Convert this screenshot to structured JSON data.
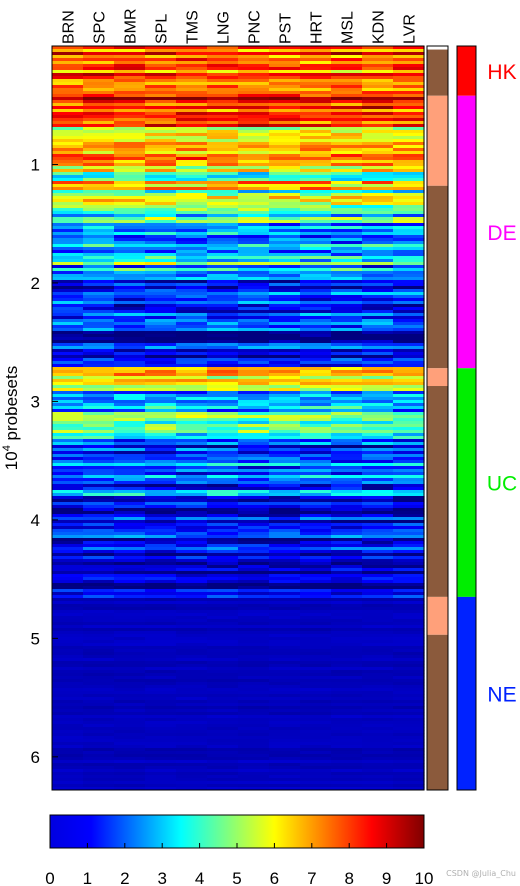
{
  "chart_data": {
    "type": "heatmap",
    "columns": [
      "BRN",
      "SPC",
      "BMR",
      "SPL",
      "TMS",
      "LNG",
      "PNC",
      "PST",
      "HRT",
      "MSL",
      "KDN",
      "LVR"
    ],
    "ylabel": "10^4 probesets",
    "ylabel_base": "10",
    "ylabel_exponent": "4",
    "ylabel_rest": " probesets",
    "ylim": [
      0,
      6.28
    ],
    "yticks": [
      1,
      2,
      3,
      4,
      5,
      6
    ],
    "colorbar": {
      "colormap": "jet",
      "range": [
        0,
        10
      ],
      "ticks": [
        "0",
        "1",
        "2",
        "3",
        "4",
        "5",
        "6",
        "7",
        "8",
        "9",
        "10"
      ]
    },
    "groups": [
      {
        "label": "HK",
        "color": "#ff0000",
        "start": 0.0,
        "end": 0.42
      },
      {
        "label": "DE",
        "color": "#ff00ff",
        "start": 0.42,
        "end": 2.72
      },
      {
        "label": "UC",
        "color": "#00ee00",
        "start": 2.72,
        "end": 4.65
      },
      {
        "label": "NE",
        "color": "#0022ff",
        "start": 4.65,
        "end": 6.28
      }
    ],
    "block_bar": [
      {
        "color": "#ffffff",
        "start": 0.0,
        "end": 0.03
      },
      {
        "color": "#8b5a3c",
        "start": 0.03,
        "end": 0.42
      },
      {
        "color": "#ffa07a",
        "start": 0.42,
        "end": 1.18
      },
      {
        "color": "#8b5a3c",
        "start": 1.18,
        "end": 2.72
      },
      {
        "color": "#ffa07a",
        "start": 2.72,
        "end": 2.87
      },
      {
        "color": "#8b5a3c",
        "start": 2.87,
        "end": 4.65
      },
      {
        "color": "#ffa07a",
        "start": 4.65,
        "end": 4.97
      },
      {
        "color": "#8b5a3c",
        "start": 4.97,
        "end": 6.28
      }
    ],
    "bands": [
      {
        "start": 0.0,
        "end": 0.42,
        "mean": 7.8,
        "spread": 1.6
      },
      {
        "start": 0.42,
        "end": 0.6,
        "mean": 8.4,
        "spread": 1.5
      },
      {
        "start": 0.6,
        "end": 1.0,
        "mean": 7.0,
        "spread": 1.8
      },
      {
        "start": 1.0,
        "end": 1.4,
        "mean": 5.2,
        "spread": 2.2
      },
      {
        "start": 1.4,
        "end": 1.9,
        "mean": 3.6,
        "spread": 2.2
      },
      {
        "start": 1.9,
        "end": 2.4,
        "mean": 2.0,
        "spread": 1.8
      },
      {
        "start": 2.4,
        "end": 2.72,
        "mean": 1.2,
        "spread": 1.4
      },
      {
        "start": 2.72,
        "end": 2.9,
        "mean": 6.2,
        "spread": 1.6
      },
      {
        "start": 2.9,
        "end": 3.3,
        "mean": 3.6,
        "spread": 2.0
      },
      {
        "start": 3.3,
        "end": 3.8,
        "mean": 2.2,
        "spread": 1.8
      },
      {
        "start": 3.8,
        "end": 4.3,
        "mean": 1.2,
        "spread": 1.4
      },
      {
        "start": 4.3,
        "end": 4.65,
        "mean": 0.8,
        "spread": 1.0
      },
      {
        "start": 4.65,
        "end": 6.28,
        "mean": 0.6,
        "spread": 0.15
      }
    ]
  },
  "watermark": "CSDN @Julia_Chu"
}
